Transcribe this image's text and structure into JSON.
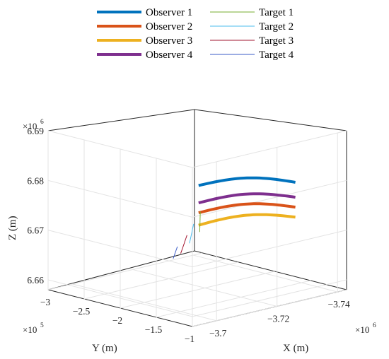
{
  "chart_data": {
    "type": "line",
    "projection": "3d",
    "grid": true,
    "legend_placement": "top",
    "legend_columns": 2,
    "xlabel": "X (m)",
    "ylabel": "Y (m)",
    "zlabel": "Z (m)",
    "x_exponent": "×10",
    "x_exponent_power": "6",
    "y_exponent": "×10",
    "y_exponent_power": "5",
    "z_exponent": "×10",
    "z_exponent_power": "6",
    "xticks": [
      "-3.7",
      "-3.72",
      "-3.74"
    ],
    "yticks": [
      "-3",
      "-2.5",
      "-2",
      "-1.5",
      "-1"
    ],
    "zticks": [
      "6.66",
      "6.67",
      "6.68",
      "6.69"
    ],
    "xlim": [
      -3.743,
      -3.692
    ],
    "ylim": [
      -3.0,
      -1.0
    ],
    "zlim": [
      6.658,
      6.69
    ],
    "series": [
      {
        "name": "Observer 1",
        "color": "#0072BD",
        "width": 4,
        "x": [
          -3.738,
          -3.706
        ],
        "y": [
          -1.5,
          -1.5
        ],
        "z": [
          6.6785,
          6.6825
        ]
      },
      {
        "name": "Observer 2",
        "color": "#D95319",
        "width": 4,
        "x": [
          -3.738,
          -3.706
        ],
        "y": [
          -1.5,
          -1.5
        ],
        "z": [
          6.6735,
          6.677
        ]
      },
      {
        "name": "Observer 3",
        "color": "#EDB120",
        "width": 4,
        "x": [
          -3.738,
          -3.706
        ],
        "y": [
          -1.5,
          -1.5
        ],
        "z": [
          6.6715,
          6.6745
        ]
      },
      {
        "name": "Observer 4",
        "color": "#7E2F8E",
        "width": 4,
        "x": [
          -3.738,
          -3.706
        ],
        "y": [
          -1.5,
          -1.5
        ],
        "z": [
          6.6755,
          6.679
        ]
      },
      {
        "name": "Target 1",
        "color": "#77AC30",
        "width": 1,
        "x": [
          -3.735,
          -3.697
        ],
        "y": [
          -2.7,
          -1.1
        ],
        "z": [
          6.6645,
          6.68
        ]
      },
      {
        "name": "Target 2",
        "color": "#4DBEEE",
        "width": 1,
        "x": [
          -3.734,
          -3.696
        ],
        "y": [
          -2.8,
          -1.15
        ],
        "z": [
          6.662,
          6.6775
        ]
      },
      {
        "name": "Target 3",
        "color": "#A2142F",
        "width": 1,
        "x": [
          -3.733,
          -3.695
        ],
        "y": [
          -2.88,
          -1.2
        ],
        "z": [
          6.6598,
          6.6752
        ]
      },
      {
        "name": "Target 4",
        "color": "#3A5BC7",
        "width": 1,
        "x": [
          -3.731,
          -3.693
        ],
        "y": [
          -2.9,
          -1.25
        ],
        "z": [
          6.659,
          6.673
        ]
      }
    ]
  }
}
